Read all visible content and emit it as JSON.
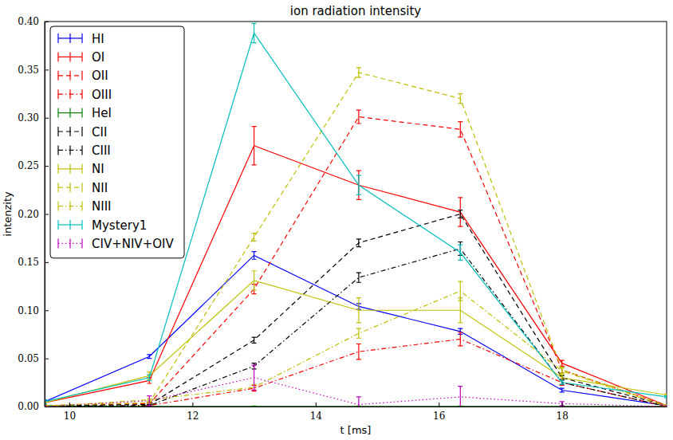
{
  "chart_data": {
    "type": "line",
    "title": "ion radiation intensity",
    "x_label": "t [ms]",
    "y_label": "intenzity",
    "x": [
      9.6,
      11.3,
      13.0,
      14.7,
      16.35,
      18.0,
      19.7
    ],
    "xlim": [
      9.6,
      19.7
    ],
    "xticks": [
      10,
      12,
      14,
      16,
      18
    ],
    "ylim": [
      0,
      0.4
    ],
    "yticks": [
      {
        "value": 0,
        "label": "0.00"
      },
      {
        "value": 0.05,
        "label": "0.05"
      },
      {
        "value": 0.1,
        "label": "0.10"
      },
      {
        "value": 0.15,
        "label": "0.15"
      },
      {
        "value": 0.2,
        "label": "0.20"
      },
      {
        "value": 0.25,
        "label": "0.25"
      },
      {
        "value": 0.3,
        "label": "0.30"
      },
      {
        "value": 0.35,
        "label": "0.35"
      },
      {
        "value": 0.4,
        "label": "0.40"
      }
    ],
    "grid": false,
    "legend": "upper left",
    "series": [
      {
        "name": "HI",
        "color": "#0000ff",
        "line_style": "solid",
        "values": [
          0.005,
          0.052,
          0.157,
          0.104,
          0.078,
          0.017,
          0.001
        ],
        "errors": [
          0.002,
          0.002,
          0.004,
          0.003,
          0.003,
          0.002,
          0.001
        ]
      },
      {
        "name": "OI",
        "color": "#ff0000",
        "line_style": "solid",
        "values": [
          0.004,
          0.027,
          0.271,
          0.23,
          0.202,
          0.045,
          0.001
        ],
        "errors": [
          0.001,
          0.003,
          0.02,
          0.015,
          0.015,
          0.003,
          0.001
        ]
      },
      {
        "name": "OII",
        "color": "#ff0000",
        "line_style": "dashed",
        "values": [
          0.001,
          0.003,
          0.122,
          0.301,
          0.288,
          0.038,
          0.001
        ],
        "errors": [
          0.001,
          0.001,
          0.005,
          0.007,
          0.008,
          0.003,
          0.001
        ]
      },
      {
        "name": "OIII",
        "color": "#ff0000",
        "line_style": "dashdot",
        "values": [
          0.0,
          0.001,
          0.019,
          0.057,
          0.07,
          0.025,
          0.0
        ],
        "errors": [
          0.0005,
          0.001,
          0.003,
          0.008,
          0.007,
          0.003,
          0.0005
        ]
      },
      {
        "name": "HeI",
        "color": "#008000",
        "line_style": "solid",
        "values": [
          0.001,
          0.0,
          0.0,
          0.0,
          0.0,
          0.0,
          0.0
        ],
        "errors": [
          0.0005,
          0.0005,
          0.0005,
          0.0005,
          0.0005,
          0.0005,
          0.0005
        ]
      },
      {
        "name": "CII",
        "color": "#000000",
        "line_style": "dashed",
        "values": [
          0.001,
          0.002,
          0.069,
          0.17,
          0.2,
          0.03,
          0.001
        ],
        "errors": [
          0.001,
          0.001,
          0.003,
          0.004,
          0.004,
          0.002,
          0.001
        ]
      },
      {
        "name": "CIII",
        "color": "#000000",
        "line_style": "dashdot",
        "values": [
          0.0,
          0.001,
          0.042,
          0.134,
          0.164,
          0.025,
          0.0
        ],
        "errors": [
          0.0005,
          0.001,
          0.003,
          0.005,
          0.007,
          0.002,
          0.0005
        ]
      },
      {
        "name": "NI",
        "color": "#bfbf00",
        "line_style": "solid",
        "values": [
          0.004,
          0.032,
          0.131,
          0.1,
          0.1,
          0.03,
          0.012
        ],
        "errors": [
          0.001,
          0.004,
          0.01,
          0.013,
          0.013,
          0.003,
          0.001
        ]
      },
      {
        "name": "NII",
        "color": "#bfbf00",
        "line_style": "dashed",
        "values": [
          0.001,
          0.004,
          0.176,
          0.347,
          0.32,
          0.038,
          0.001
        ],
        "errors": [
          0.001,
          0.001,
          0.004,
          0.005,
          0.005,
          0.003,
          0.001
        ]
      },
      {
        "name": "NIII",
        "color": "#bfbf00",
        "line_style": "dashdot",
        "values": [
          0.0,
          0.007,
          0.02,
          0.076,
          0.12,
          0.037,
          0.0
        ],
        "errors": [
          0.0005,
          0.001,
          0.003,
          0.005,
          0.01,
          0.003,
          0.0005
        ]
      },
      {
        "name": "Mystery1",
        "color": "#00bfbf",
        "line_style": "solid",
        "values": [
          0.005,
          0.03,
          0.388,
          0.23,
          0.16,
          0.025,
          0.01
        ],
        "errors": [
          0.002,
          0.003,
          0.01,
          0.01,
          0.008,
          0.002,
          0.001
        ]
      },
      {
        "name": "CIV+NIV+OIV",
        "color": "#bf00bf",
        "line_style": "dotted",
        "values": [
          0.0,
          0.006,
          0.03,
          0.002,
          0.01,
          0.003,
          0.0
        ],
        "errors": [
          0.001,
          0.005,
          0.013,
          0.008,
          0.011,
          0.002,
          0.001
        ]
      }
    ]
  }
}
